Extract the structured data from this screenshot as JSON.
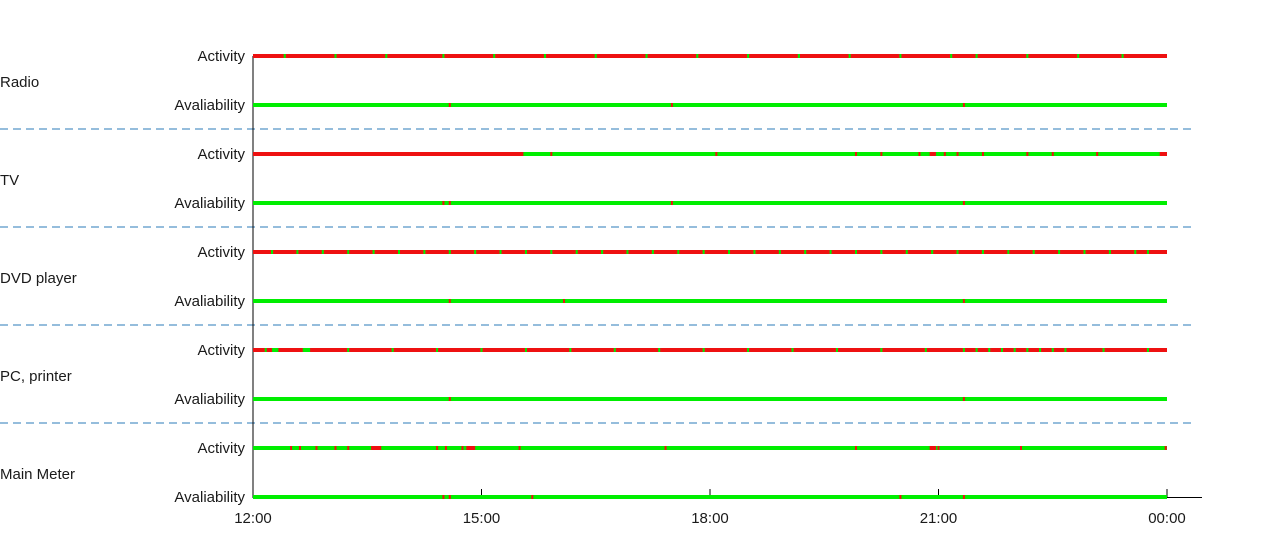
{
  "chart_data": {
    "type": "timeline",
    "x_axis": {
      "range": [
        "12:00",
        "00:00"
      ],
      "ticks": [
        "12:00",
        "15:00",
        "18:00",
        "21:00",
        "00:00"
      ]
    },
    "row_labels": [
      "Activity",
      "Avaliability"
    ],
    "colors": {
      "on": "#00ee00",
      "off": "#ee1111",
      "separator": "#2b7bb9"
    },
    "devices": [
      {
        "name": "Radio",
        "activity": {
          "base": "off",
          "marks": [
            "12:25",
            "13:05",
            "13:45",
            "14:30",
            "15:10",
            "15:50",
            "16:30",
            "17:10",
            "17:50",
            "18:30",
            "19:10",
            "19:50",
            "20:30",
            "21:10",
            "21:30",
            "22:10",
            "22:50",
            "23:25"
          ],
          "segments": []
        },
        "availability": {
          "base": "on",
          "marks": [
            "14:35",
            "17:30",
            "21:20"
          ],
          "segments": []
        }
      },
      {
        "name": "TV",
        "activity": {
          "base": "on",
          "marks": [
            "15:55",
            "18:05",
            "19:55",
            "20:15",
            "20:45",
            "21:05",
            "21:15",
            "21:35",
            "22:10",
            "22:30",
            "23:05",
            "23:55"
          ],
          "segments": [
            [
              "12:00",
              "15:33",
              "off"
            ],
            [
              "20:53",
              "20:58",
              "off"
            ],
            [
              "23:55",
              "24:00",
              "off"
            ]
          ]
        },
        "availability": {
          "base": "on",
          "marks": [
            "14:30",
            "14:35",
            "17:30",
            "21:20"
          ],
          "segments": []
        }
      },
      {
        "name": "DVD player",
        "activity": {
          "base": "off",
          "marks": [
            "12:15",
            "12:35",
            "12:55",
            "13:15",
            "13:35",
            "13:55",
            "14:15",
            "14:35",
            "14:55",
            "15:15",
            "15:35",
            "15:55",
            "16:15",
            "16:35",
            "16:55",
            "17:15",
            "17:35",
            "17:55",
            "18:15",
            "18:35",
            "18:55",
            "19:15",
            "19:35",
            "19:55",
            "20:15",
            "20:35",
            "20:55",
            "21:15",
            "21:35",
            "21:55",
            "22:15",
            "22:35",
            "22:55",
            "23:15",
            "23:35",
            "23:45"
          ],
          "segments": []
        },
        "availability": {
          "base": "on",
          "marks": [
            "14:35",
            "16:05",
            "21:20"
          ],
          "segments": []
        }
      },
      {
        "name": "PC, printer",
        "activity": {
          "base": "off",
          "marks": [
            "12:10",
            "12:40",
            "13:15",
            "13:50",
            "14:25",
            "15:00",
            "15:35",
            "16:10",
            "16:45",
            "17:20",
            "17:55",
            "18:30",
            "19:05",
            "19:40",
            "20:15",
            "20:50",
            "21:20",
            "21:30",
            "21:40",
            "21:50",
            "22:00",
            "22:10",
            "22:20",
            "22:30",
            "22:40",
            "23:10",
            "23:45"
          ],
          "segments": [
            [
              "12:15",
              "12:20",
              "on"
            ],
            [
              "12:40",
              "12:45",
              "on"
            ]
          ]
        },
        "availability": {
          "base": "on",
          "marks": [
            "14:35",
            "21:20"
          ],
          "segments": []
        }
      },
      {
        "name": "Main Meter",
        "activity": {
          "base": "on",
          "marks": [
            "12:30",
            "12:37",
            "12:50",
            "13:05",
            "13:15",
            "14:25",
            "14:32",
            "14:45",
            "15:30",
            "17:25",
            "19:55",
            "21:00",
            "22:05",
            "23:59"
          ],
          "segments": [
            [
              "13:33",
              "13:41",
              "off"
            ],
            [
              "14:48",
              "14:55",
              "off"
            ],
            [
              "20:53",
              "20:58",
              "off"
            ]
          ]
        },
        "availability": {
          "base": "on",
          "marks": [
            "14:30",
            "14:35",
            "15:40",
            "20:30",
            "21:20"
          ],
          "segments": []
        }
      }
    ]
  }
}
